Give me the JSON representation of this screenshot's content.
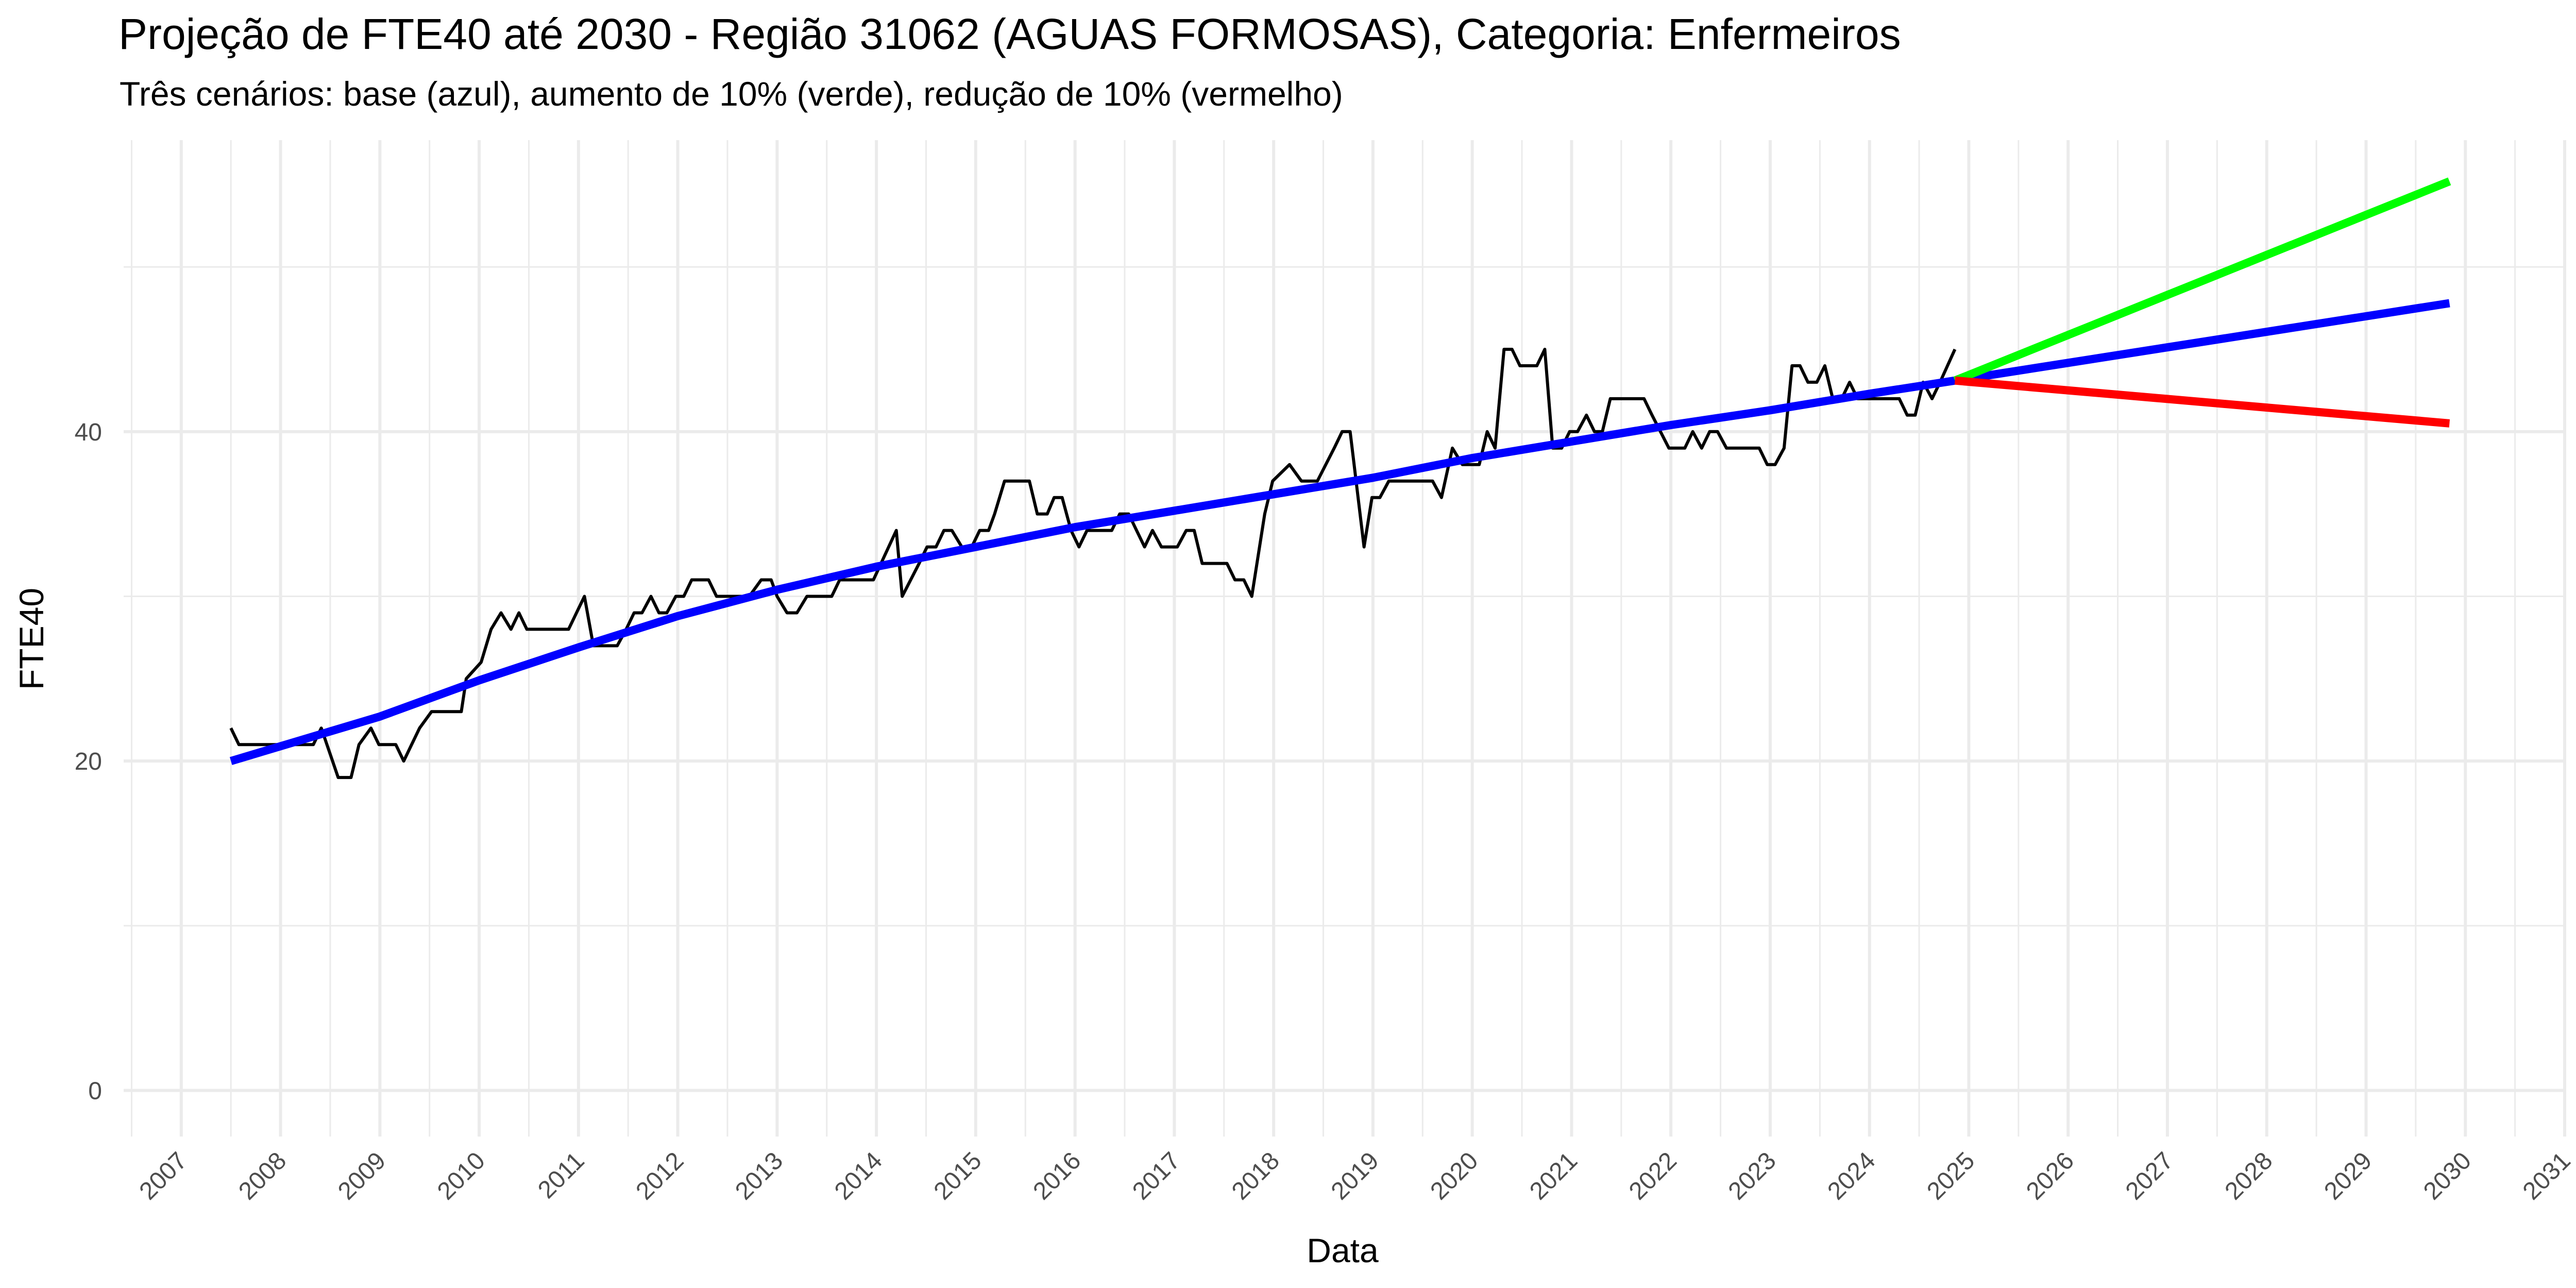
{
  "chart_data": {
    "type": "line",
    "title": "Projeção de FTE40 até 2030 - Região 31062 (AGUAS FORMOSAS), Categoria: Enfermeiros",
    "subtitle": "Três cenários: base (azul), aumento de 10% (verde), redução de 10% (vermelho)",
    "x_label": "Data",
    "y_label": "FTE40",
    "xlim": [
      2006.42,
      2031.0
    ],
    "xticks": [
      2007,
      2008,
      2009,
      2010,
      2011,
      2012,
      2013,
      2014,
      2015,
      2016,
      2017,
      2018,
      2019,
      2020,
      2021,
      2022,
      2023,
      2024,
      2025,
      2026,
      2027,
      2028,
      2029,
      2030,
      2031
    ],
    "ylim": [
      -2.8,
      57.7
    ],
    "yticks": [
      0,
      20,
      40
    ],
    "grid": true,
    "series": [
      {
        "color": "#000000",
        "x": [
          2007.5,
          2007.58,
          2007.91,
          2008.08,
          2008.24,
          2008.33,
          2008.41,
          2008.58,
          2008.71,
          2008.79,
          2008.91,
          2008.99,
          2009.16,
          2009.24,
          2009.4,
          2009.52,
          2009.82,
          2009.87,
          2010.02,
          2010.12,
          2010.22,
          2010.32,
          2010.4,
          2010.48,
          2010.9,
          2011.06,
          2011.15,
          2011.39,
          2011.48,
          2011.56,
          2011.64,
          2011.73,
          2011.81,
          2011.89,
          2011.98,
          2012.06,
          2012.14,
          2012.31,
          2012.39,
          2012.72,
          2012.84,
          2012.94,
          2013.0,
          2013.1,
          2013.2,
          2013.3,
          2013.55,
          2013.63,
          2013.97,
          2014.2,
          2014.26,
          2014.43,
          2014.51,
          2014.6,
          2014.68,
          2014.76,
          2014.86,
          2014.96,
          2015.04,
          2015.13,
          2015.19,
          2015.29,
          2015.54,
          2015.62,
          2015.72,
          2015.79,
          2015.87,
          2015.96,
          2016.04,
          2016.12,
          2016.37,
          2016.45,
          2016.54,
          2016.62,
          2016.7,
          2016.78,
          2016.87,
          2017.03,
          2017.12,
          2017.2,
          2017.28,
          2017.53,
          2017.61,
          2017.7,
          2017.78,
          2017.91,
          2017.99,
          2018.16,
          2018.28,
          2018.44,
          2018.61,
          2018.69,
          2018.77,
          2018.91,
          2018.99,
          2019.07,
          2019.16,
          2019.6,
          2019.69,
          2019.8,
          2019.9,
          2020.07,
          2020.15,
          2020.23,
          2020.32,
          2020.4,
          2020.48,
          2020.65,
          2020.73,
          2020.81,
          2020.9,
          2020.98,
          2021.06,
          2021.15,
          2021.23,
          2021.31,
          2021.39,
          2021.73,
          2021.81,
          2021.98,
          2022.14,
          2022.22,
          2022.31,
          2022.39,
          2022.47,
          2022.56,
          2022.89,
          2022.97,
          2023.05,
          2023.14,
          2023.22,
          2023.3,
          2023.38,
          2023.47,
          2023.55,
          2023.63,
          2023.72,
          2023.8,
          2023.88,
          2024.3,
          2024.38,
          2024.46,
          2024.54,
          2024.63,
          2024.71,
          2024.86
        ],
        "values": [
          22,
          21,
          21,
          21,
          21,
          21,
          22,
          19,
          19,
          21,
          22,
          21,
          21,
          20,
          22,
          23,
          23,
          25,
          26,
          28,
          29,
          28,
          29,
          28,
          28,
          30,
          27,
          27,
          28,
          29,
          29,
          30,
          29,
          29,
          30,
          30,
          31,
          31,
          30,
          30,
          31,
          31,
          30,
          29,
          29,
          30,
          30,
          31,
          31,
          34,
          30,
          32,
          33,
          33,
          34,
          34,
          33,
          33,
          34,
          34,
          35,
          37,
          37,
          35,
          35,
          36,
          36,
          34,
          33,
          34,
          34,
          35,
          35,
          34,
          33,
          34,
          33,
          33,
          34,
          34,
          32,
          32,
          31,
          31,
          30,
          35,
          37,
          38,
          37,
          37,
          39,
          40,
          40,
          33,
          36,
          36,
          37,
          37,
          36,
          39,
          38,
          38,
          40,
          39,
          45,
          45,
          44,
          44,
          45,
          39,
          39,
          40,
          40,
          41,
          40,
          40,
          42,
          42,
          41,
          39,
          39,
          40,
          39,
          40,
          40,
          39,
          39,
          38,
          38,
          39,
          44,
          44,
          43,
          43,
          44,
          42,
          42,
          43,
          42,
          42,
          41,
          41,
          43,
          42,
          43,
          45
        ]
      },
      {
        "color": "#0000ff",
        "x": [
          2007.5,
          2009,
          2010,
          2011,
          2012,
          2013,
          2014,
          2015,
          2016,
          2017,
          2018,
          2019,
          2020,
          2021,
          2022,
          2023,
          2024,
          2024.86,
          2029.84
        ],
        "values": [
          20,
          22.7,
          24.9,
          26.9,
          28.8,
          30.4,
          31.8,
          33.0,
          34.2,
          35.2,
          36.2,
          37.2,
          38.4,
          39.4,
          40.4,
          41.3,
          42.3,
          43.1,
          47.8
        ]
      },
      {
        "color": "#00ff00",
        "x": [
          2024.86,
          2029.84
        ],
        "values": [
          43.1,
          55.2
        ]
      },
      {
        "color": "#ff0000",
        "x": [
          2024.86,
          2029.84
        ],
        "values": [
          43.1,
          40.5
        ]
      }
    ]
  }
}
